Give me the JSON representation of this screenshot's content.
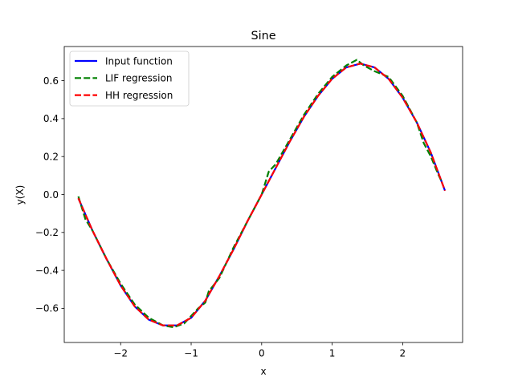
{
  "chart_data": {
    "type": "line",
    "title": "Sine",
    "xlabel": "x",
    "ylabel": "y(X)",
    "xlim": [
      -2.8,
      2.85
    ],
    "ylim": [
      -0.78,
      0.78
    ],
    "xticks": [
      -2,
      -1,
      0,
      1,
      2
    ],
    "yticks": [
      -0.6,
      -0.4,
      -0.2,
      0.0,
      0.2,
      0.4,
      0.6
    ],
    "xtick_labels": [
      "−2",
      "−1",
      "0",
      "1",
      "2"
    ],
    "ytick_labels": [
      "−0.6",
      "−0.4",
      "−0.2",
      "0.0",
      "0.2",
      "0.4",
      "0.6"
    ],
    "grid": false,
    "legend": {
      "placement": "top-left"
    },
    "series": [
      {
        "name": "Input function",
        "color": "#0000ff",
        "style": "solid",
        "x": [
          -2.6,
          -2.4,
          -2.2,
          -2.0,
          -1.8,
          -1.6,
          -1.4,
          -1.2,
          -1.0,
          -0.8,
          -0.6,
          -0.4,
          -0.2,
          0.0,
          0.2,
          0.4,
          0.6,
          0.8,
          1.0,
          1.2,
          1.4,
          1.6,
          1.8,
          2.0,
          2.2,
          2.4,
          2.6
        ],
        "y": [
          -0.02,
          -0.19,
          -0.34,
          -0.48,
          -0.59,
          -0.66,
          -0.69,
          -0.69,
          -0.65,
          -0.56,
          -0.43,
          -0.29,
          -0.14,
          0.0,
          0.14,
          0.28,
          0.41,
          0.52,
          0.61,
          0.67,
          0.69,
          0.67,
          0.61,
          0.51,
          0.38,
          0.22,
          0.02
        ]
      },
      {
        "name": "LIF regression",
        "color": "#008000",
        "style": "dashed",
        "x": [
          -2.6,
          -2.5,
          -2.4,
          -2.2,
          -2.0,
          -1.8,
          -1.6,
          -1.4,
          -1.25,
          -1.1,
          -1.0,
          -0.9,
          -0.8,
          -0.75,
          -0.6,
          -0.4,
          -0.2,
          0.0,
          0.1,
          0.2,
          0.4,
          0.6,
          0.8,
          1.0,
          1.2,
          1.35,
          1.45,
          1.6,
          1.8,
          2.0,
          2.2,
          2.3,
          2.4,
          2.5,
          2.55
        ],
        "y": [
          -0.01,
          -0.13,
          -0.19,
          -0.34,
          -0.47,
          -0.58,
          -0.65,
          -0.69,
          -0.7,
          -0.68,
          -0.64,
          -0.6,
          -0.57,
          -0.51,
          -0.44,
          -0.28,
          -0.14,
          0.0,
          0.12,
          0.16,
          0.29,
          0.42,
          0.53,
          0.62,
          0.68,
          0.71,
          0.68,
          0.65,
          0.62,
          0.52,
          0.38,
          0.27,
          0.2,
          0.11,
          0.07
        ]
      },
      {
        "name": "HH regression",
        "color": "#ff0000",
        "style": "dashed",
        "x": [
          -2.6,
          -2.4,
          -2.2,
          -2.0,
          -1.8,
          -1.6,
          -1.4,
          -1.2,
          -1.0,
          -0.8,
          -0.6,
          -0.4,
          -0.2,
          0.0,
          0.2,
          0.4,
          0.6,
          0.8,
          1.0,
          1.2,
          1.4,
          1.6,
          1.8,
          2.0,
          2.2,
          2.4,
          2.6
        ],
        "y": [
          -0.02,
          -0.19,
          -0.34,
          -0.48,
          -0.59,
          -0.66,
          -0.69,
          -0.69,
          -0.65,
          -0.56,
          -0.43,
          -0.29,
          -0.14,
          0.0,
          0.14,
          0.28,
          0.41,
          0.52,
          0.61,
          0.67,
          0.69,
          0.67,
          0.61,
          0.51,
          0.38,
          0.22,
          0.02
        ]
      }
    ]
  }
}
